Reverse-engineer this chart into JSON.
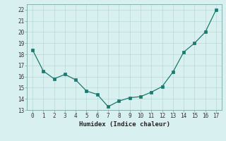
{
  "x": [
    0,
    1,
    2,
    3,
    4,
    5,
    6,
    7,
    8,
    9,
    10,
    11,
    12,
    13,
    14,
    15,
    16,
    17
  ],
  "y": [
    18.4,
    16.5,
    15.8,
    16.2,
    15.7,
    14.7,
    14.4,
    13.3,
    13.8,
    14.1,
    14.2,
    14.6,
    15.1,
    16.4,
    18.2,
    19.0,
    20.0,
    22.0
  ],
  "xlabel": "Humidex (Indice chaleur)",
  "xlim": [
    -0.5,
    17.5
  ],
  "ylim": [
    13,
    22.5
  ],
  "yticks": [
    13,
    14,
    15,
    16,
    17,
    18,
    19,
    20,
    21,
    22
  ],
  "xticks": [
    0,
    1,
    2,
    3,
    4,
    5,
    6,
    7,
    8,
    9,
    10,
    11,
    12,
    13,
    14,
    15,
    16,
    17
  ],
  "line_color": "#1a7a6e",
  "bg_color": "#d9f0f0",
  "grid_color": "#b8d8d8",
  "spine_color": "#7aa8a8"
}
